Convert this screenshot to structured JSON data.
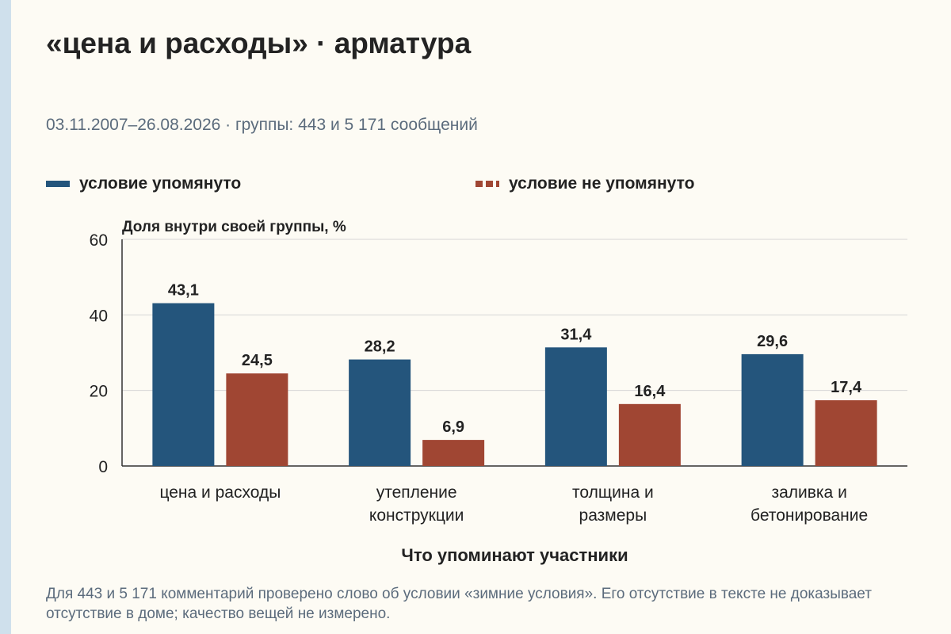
{
  "title": "«цена и расходы» · арматура",
  "subtitle": "03.11.2007–26.08.2026 · группы: 443 и 5 171 сообщений",
  "footnote": "Для 443 и 5 171 комментарий проверено слово об условии «зимние условия». Его отсутствие в тексте не доказывает отсутствие в доме; качество вещей не измерено.",
  "colors": {
    "mentioned": "#24557c",
    "not_mentioned": "#a04633",
    "grid": "#d6d6d6",
    "axis": "#333333"
  },
  "chart_data": {
    "type": "bar",
    "ylabel": "Доля внутри своей группы, %",
    "xlabel": "Что упоминают участники",
    "ylim": [
      0,
      60
    ],
    "yticks": [
      0,
      20,
      40,
      60
    ],
    "grid": true,
    "legend_position": "top",
    "categories": [
      [
        "цена и расходы"
      ],
      [
        "утепление",
        "конструкции"
      ],
      [
        "толщина и",
        "размеры"
      ],
      [
        "заливка и",
        "бетонирование"
      ]
    ],
    "series": [
      {
        "name": "условие упомянуто",
        "values_label": [
          "43,1",
          "28,2",
          "31,4",
          "29,6"
        ],
        "values": [
          43.1,
          28.2,
          31.4,
          29.6
        ]
      },
      {
        "name": "условие не упомянуто",
        "values_label": [
          "24,5",
          "6,9",
          "16,4",
          "17,4"
        ],
        "values": [
          24.5,
          6.9,
          16.4,
          17.4
        ]
      }
    ]
  }
}
